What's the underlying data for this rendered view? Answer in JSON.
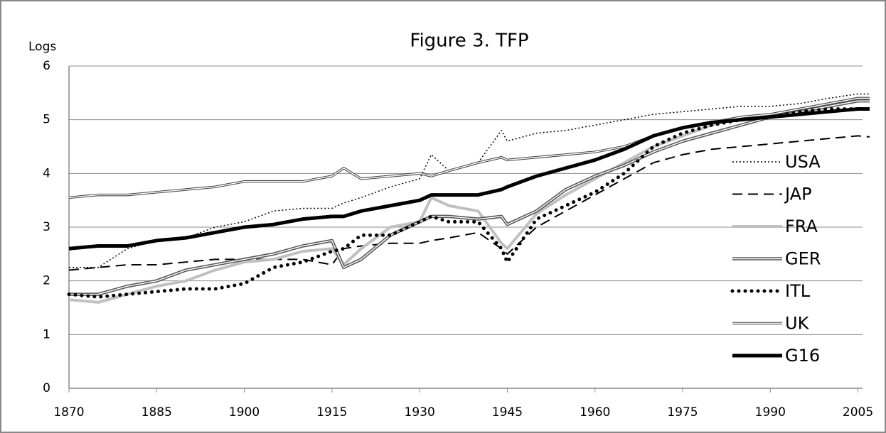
{
  "chart_data": {
    "type": "line",
    "title": "Figure 3. TFP",
    "ylabel": "Logs",
    "x": [
      1870,
      1875,
      1880,
      1885,
      1890,
      1895,
      1900,
      1905,
      1910,
      1915,
      1917,
      1920,
      1925,
      1930,
      1932,
      1935,
      1940,
      1944,
      1945,
      1950,
      1955,
      1960,
      1965,
      1970,
      1975,
      1980,
      1985,
      1990,
      1995,
      2000,
      2005,
      2007
    ],
    "xlim": [
      1870,
      2007
    ],
    "xticks": [
      1870,
      1885,
      1900,
      1915,
      1930,
      1945,
      1960,
      1975,
      1990,
      2005
    ],
    "ylim": [
      0,
      6
    ],
    "yticks": [
      0,
      1,
      2,
      3,
      4,
      5,
      6
    ],
    "grid": true,
    "legend": "right",
    "series": [
      {
        "name": "USA",
        "color": "#000000",
        "width": 1.5,
        "dash": "2,3",
        "double": false,
        "values": [
          2.25,
          2.25,
          2.6,
          2.75,
          2.8,
          3.0,
          3.1,
          3.3,
          3.35,
          3.35,
          3.45,
          3.55,
          3.75,
          3.9,
          4.35,
          4.05,
          4.2,
          4.8,
          4.6,
          4.75,
          4.8,
          4.9,
          5.0,
          5.1,
          5.15,
          5.2,
          5.25,
          5.25,
          5.3,
          5.4,
          5.48,
          5.48
        ]
      },
      {
        "name": "JAP",
        "color": "#000000",
        "width": 2,
        "dash": "14,8",
        "double": false,
        "values": [
          2.2,
          2.25,
          2.3,
          2.3,
          2.35,
          2.4,
          2.4,
          2.4,
          2.4,
          2.3,
          2.6,
          2.65,
          2.7,
          2.7,
          2.75,
          2.8,
          2.9,
          2.6,
          2.5,
          3.0,
          3.3,
          3.6,
          3.9,
          4.2,
          4.35,
          4.45,
          4.5,
          4.55,
          4.6,
          4.65,
          4.7,
          4.68
        ]
      },
      {
        "name": "FRA",
        "color": "#c0c0c0",
        "width": 4,
        "dash": "none",
        "double": false,
        "values": [
          1.65,
          1.6,
          1.75,
          1.9,
          2.0,
          2.2,
          2.35,
          2.4,
          2.55,
          2.6,
          2.3,
          2.6,
          3.0,
          3.1,
          3.55,
          3.4,
          3.3,
          2.7,
          2.6,
          3.25,
          3.6,
          3.9,
          4.2,
          4.5,
          4.7,
          4.9,
          5.05,
          5.1,
          5.2,
          5.3,
          5.4,
          5.4
        ]
      },
      {
        "name": "GER",
        "color": "#555555",
        "width": 4.5,
        "dash": "none",
        "double": true,
        "values": [
          1.75,
          1.75,
          1.9,
          2.0,
          2.2,
          2.3,
          2.4,
          2.5,
          2.65,
          2.75,
          2.25,
          2.4,
          2.85,
          3.1,
          3.2,
          3.2,
          3.15,
          3.2,
          3.05,
          3.3,
          3.7,
          3.95,
          4.15,
          4.4,
          4.6,
          4.75,
          4.9,
          5.05,
          5.15,
          5.25,
          5.35,
          5.35
        ]
      },
      {
        "name": "ITL",
        "color": "#000000",
        "width": 5,
        "dash": "0,9",
        "double": false,
        "values": [
          1.75,
          1.7,
          1.75,
          1.8,
          1.85,
          1.85,
          1.95,
          2.25,
          2.35,
          2.55,
          2.6,
          2.85,
          2.85,
          3.1,
          3.2,
          3.1,
          3.1,
          2.6,
          2.35,
          3.15,
          3.4,
          3.65,
          4.0,
          4.5,
          4.75,
          4.9,
          5.0,
          5.05,
          5.15,
          5.2,
          5.2,
          5.2
        ]
      },
      {
        "name": "UK",
        "color": "#444444",
        "width": 3.5,
        "dash": "none",
        "double": true,
        "values": [
          3.55,
          3.6,
          3.6,
          3.65,
          3.7,
          3.75,
          3.85,
          3.85,
          3.85,
          3.95,
          4.1,
          3.9,
          3.95,
          4.0,
          3.95,
          4.05,
          4.2,
          4.3,
          4.25,
          4.3,
          4.35,
          4.4,
          4.5,
          4.7,
          4.85,
          4.95,
          5.05,
          5.1,
          5.2,
          5.3,
          5.4,
          5.4
        ]
      },
      {
        "name": "G16",
        "color": "#000000",
        "width": 5,
        "dash": "none",
        "double": false,
        "values": [
          2.6,
          2.65,
          2.65,
          2.75,
          2.8,
          2.9,
          3.0,
          3.05,
          3.15,
          3.2,
          3.2,
          3.3,
          3.4,
          3.5,
          3.6,
          3.6,
          3.6,
          3.7,
          3.75,
          3.95,
          4.1,
          4.25,
          4.45,
          4.7,
          4.85,
          4.95,
          5.0,
          5.05,
          5.1,
          5.15,
          5.2,
          5.2
        ]
      }
    ]
  }
}
